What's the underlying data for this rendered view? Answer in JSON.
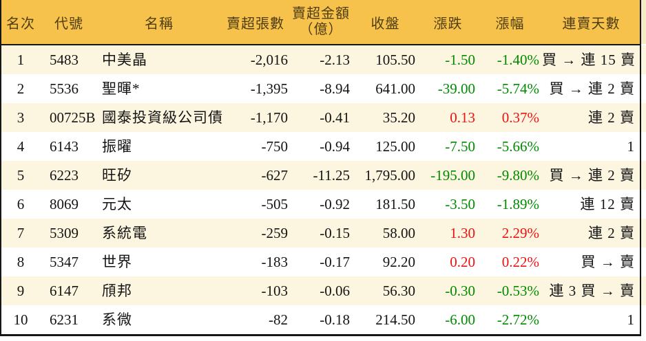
{
  "colors": {
    "header_bg": "#f7c24b",
    "header_text": "#4f3d12",
    "stripe_cream": "#fcf5e0",
    "up_red": "#ed1111",
    "down_green": "#008a00"
  },
  "table": {
    "columns": [
      {
        "key": "rank",
        "label": "名次"
      },
      {
        "key": "code",
        "label": "代號"
      },
      {
        "key": "name",
        "label": "名稱"
      },
      {
        "key": "volume",
        "label": "賣超張數"
      },
      {
        "key": "amount",
        "label": "賣超金額"
      },
      {
        "key": "close",
        "label": "收盤"
      },
      {
        "key": "change",
        "label": "漲跌"
      },
      {
        "key": "pct",
        "label": "漲幅"
      },
      {
        "key": "streak",
        "label": "連賣天數"
      }
    ],
    "amount_label_line2": "（億）",
    "rows": [
      {
        "rank": "1",
        "code": "5483",
        "name": "中美晶",
        "volume": "-2,016",
        "amount": "-2.13",
        "close": "105.50",
        "change": "-1.50",
        "pct": "-1.40%",
        "trend": "down",
        "streak": "買 → 連 15 賣"
      },
      {
        "rank": "2",
        "code": "5536",
        "name": "聖暉*",
        "volume": "-1,395",
        "amount": "-8.94",
        "close": "641.00",
        "change": "-39.00",
        "pct": "-5.74%",
        "trend": "down",
        "streak": "買 → 連 2 賣"
      },
      {
        "rank": "3",
        "code": "00725B",
        "name": "國泰投資級公司債",
        "volume": "-1,170",
        "amount": "-0.41",
        "close": "35.20",
        "change": "0.13",
        "pct": "0.37%",
        "trend": "up",
        "streak": "連 2 賣"
      },
      {
        "rank": "4",
        "code": "6143",
        "name": "振曜",
        "volume": "-750",
        "amount": "-0.94",
        "close": "125.00",
        "change": "-7.50",
        "pct": "-5.66%",
        "trend": "down",
        "streak": "1"
      },
      {
        "rank": "5",
        "code": "6223",
        "name": "旺矽",
        "volume": "-627",
        "amount": "-11.25",
        "close": "1,795.00",
        "change": "-195.00",
        "pct": "-9.80%",
        "trend": "down",
        "streak": "買 → 連 2 賣"
      },
      {
        "rank": "6",
        "code": "8069",
        "name": "元太",
        "volume": "-505",
        "amount": "-0.92",
        "close": "181.50",
        "change": "-3.50",
        "pct": "-1.89%",
        "trend": "down",
        "streak": "連 12 賣"
      },
      {
        "rank": "7",
        "code": "5309",
        "name": "系統電",
        "volume": "-259",
        "amount": "-0.15",
        "close": "58.00",
        "change": "1.30",
        "pct": "2.29%",
        "trend": "up",
        "streak": "連 2 賣"
      },
      {
        "rank": "8",
        "code": "5347",
        "name": "世界",
        "volume": "-183",
        "amount": "-0.17",
        "close": "92.20",
        "change": "0.20",
        "pct": "0.22%",
        "trend": "up",
        "streak": "買 → 賣"
      },
      {
        "rank": "9",
        "code": "6147",
        "name": "頎邦",
        "volume": "-103",
        "amount": "-0.06",
        "close": "56.30",
        "change": "-0.30",
        "pct": "-0.53%",
        "trend": "down",
        "streak": "連 3 買 → 賣"
      },
      {
        "rank": "10",
        "code": "6231",
        "name": "系微",
        "volume": "-82",
        "amount": "-0.18",
        "close": "214.50",
        "change": "-6.00",
        "pct": "-2.72%",
        "trend": "down",
        "streak": "1"
      }
    ]
  }
}
